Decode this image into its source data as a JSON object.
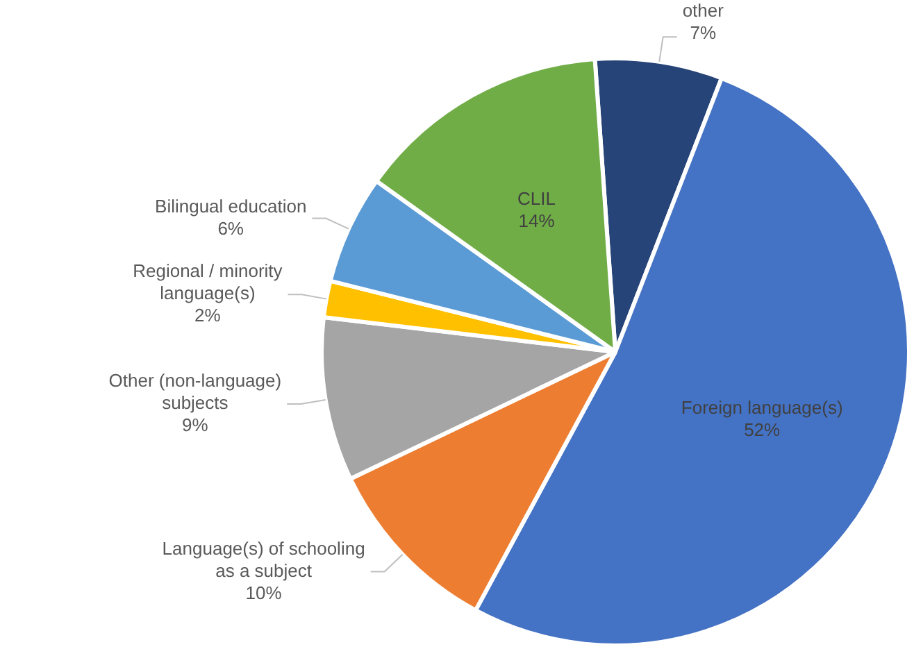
{
  "chart_data": {
    "type": "pie",
    "categories": [
      "other",
      "Foreign language(s)",
      "Language(s) of schooling as a subject",
      "Other (non-language) subjects",
      "Regional / minority language(s)",
      "Bilingual education",
      "CLIL"
    ],
    "values": [
      7,
      52,
      10,
      9,
      2,
      6,
      14
    ],
    "value_labels": [
      "7%",
      "52%",
      "10%",
      "9%",
      "2%",
      "6%",
      "14%"
    ],
    "colors": [
      "#264478",
      "#4472c4",
      "#ed7d31",
      "#a5a5a5",
      "#ffc000",
      "#5b9bd5",
      "#70ad47"
    ],
    "legend": false
  }
}
